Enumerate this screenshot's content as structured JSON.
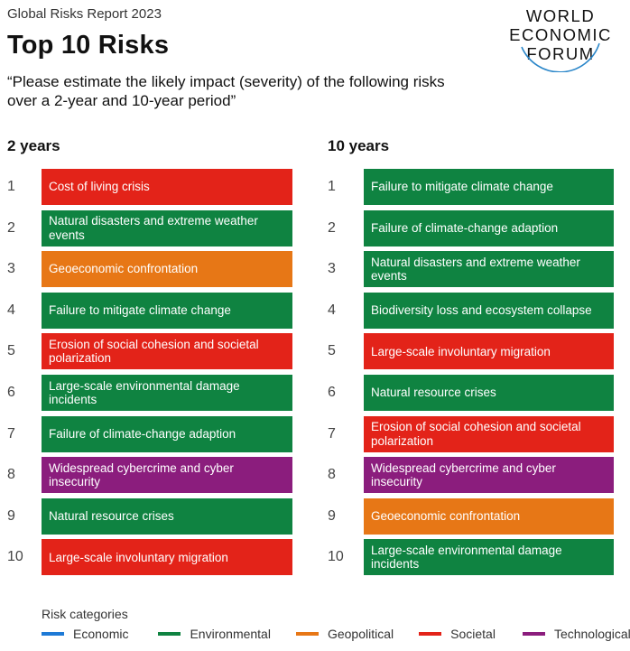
{
  "header": {
    "report_name": "Global Risks Report 2023",
    "title": "Top 10 Risks",
    "question": "“Please estimate the likely impact (severity) of the following risks over a 2-year and 10-year period”"
  },
  "logo": {
    "line1": "WORLD",
    "line2": "ECONOMIC",
    "line3": "FORUM"
  },
  "columns": [
    {
      "heading": "2 years",
      "items": [
        {
          "rank": "1",
          "label": "Cost of living crisis",
          "category": "Societal"
        },
        {
          "rank": "2",
          "label": "Natural disasters and extreme weather events",
          "category": "Environmental"
        },
        {
          "rank": "3",
          "label": "Geoeconomic confrontation",
          "category": "Geopolitical"
        },
        {
          "rank": "4",
          "label": "Failure to mitigate climate change",
          "category": "Environmental"
        },
        {
          "rank": "5",
          "label": "Erosion of social cohesion and societal polarization",
          "category": "Societal"
        },
        {
          "rank": "6",
          "label": "Large-scale environmental damage incidents",
          "category": "Environmental"
        },
        {
          "rank": "7",
          "label": "Failure of climate-change adaption",
          "category": "Environmental"
        },
        {
          "rank": "8",
          "label": "Widespread cybercrime and cyber insecurity",
          "category": "Technological"
        },
        {
          "rank": "9",
          "label": "Natural resource crises",
          "category": "Environmental"
        },
        {
          "rank": "10",
          "label": "Large-scale involuntary migration",
          "category": "Societal"
        }
      ]
    },
    {
      "heading": "10 years",
      "items": [
        {
          "rank": "1",
          "label": "Failure to mitigate climate change",
          "category": "Environmental"
        },
        {
          "rank": "2",
          "label": "Failure of climate-change adaption",
          "category": "Environmental"
        },
        {
          "rank": "3",
          "label": "Natural disasters and extreme weather events",
          "category": "Environmental"
        },
        {
          "rank": "4",
          "label": "Biodiversity loss and ecosystem collapse",
          "category": "Environmental"
        },
        {
          "rank": "5",
          "label": "Large-scale involuntary migration",
          "category": "Societal"
        },
        {
          "rank": "6",
          "label": "Natural resource crises",
          "category": "Environmental"
        },
        {
          "rank": "7",
          "label": "Erosion of social cohesion and societal polarization",
          "category": "Societal"
        },
        {
          "rank": "8",
          "label": "Widespread cybercrime and cyber insecurity",
          "category": "Technological"
        },
        {
          "rank": "9",
          "label": "Geoeconomic confrontation",
          "category": "Geopolitical"
        },
        {
          "rank": "10",
          "label": "Large-scale environmental damage incidents",
          "category": "Environmental"
        }
      ]
    }
  ],
  "legend": {
    "title": "Risk categories",
    "items": [
      {
        "label": "Economic",
        "color": "#1e7ad6"
      },
      {
        "label": "Environmental",
        "color": "#0f8341"
      },
      {
        "label": "Geopolitical",
        "color": "#e77716"
      },
      {
        "label": "Societal",
        "color": "#e32319"
      },
      {
        "label": "Technological",
        "color": "#8b1d7d"
      }
    ]
  }
}
